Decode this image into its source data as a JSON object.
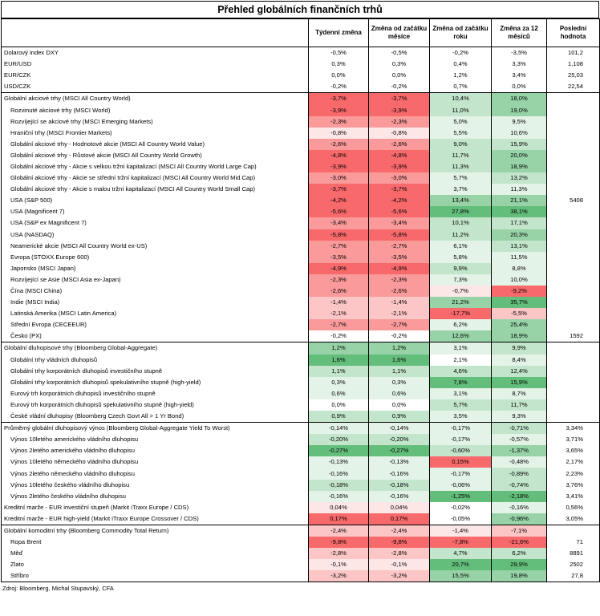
{
  "title": "Přehled globálních finančních trhů",
  "headers": [
    "",
    "Týdenní změna",
    "Změna od začátku měsíce",
    "Změna od začátku roku",
    "Změna za 12 měsíců",
    "Poslední hodnota"
  ],
  "colors": {
    "red_strong": "#f8696b",
    "red_mid": "#fa9a9b",
    "red_light": "#fcc5c6",
    "red_pale": "#fde6e6",
    "green_strong": "#63be7b",
    "green_mid": "#97d3a6",
    "green_light": "#c2e5cb",
    "green_pale": "#e4f3e8"
  },
  "groups": [
    {
      "rows": [
        {
          "label": "Dolarový index DXY",
          "sub": false,
          "w": "-0,5%",
          "m": "-0,5%",
          "y": "-0,2%",
          "t": "-3,5%",
          "last": "101,2"
        },
        {
          "label": "EUR/USD",
          "sub": false,
          "w": "0,3%",
          "m": "0,3%",
          "y": "0,4%",
          "t": "3,3%",
          "last": "1,108"
        },
        {
          "label": "EUR/CZK",
          "sub": false,
          "w": "0,0%",
          "m": "0,0%",
          "y": "1,2%",
          "t": "3,4%",
          "last": "25,03"
        },
        {
          "label": "USD/CZK",
          "sub": false,
          "w": "-0,2%",
          "m": "-0,2%",
          "y": "0,7%",
          "t": "0,0%",
          "last": "22,54"
        }
      ]
    },
    {
      "rows": [
        {
          "label": "Globální akciové trhy (MSCI All Country World)",
          "sub": false,
          "w": "-3,7%",
          "m": "-3,7%",
          "y": "10,4%",
          "t": "18,0%",
          "last": "",
          "cw": "red_strong",
          "cm": "red_strong",
          "cy": "green_light",
          "ct": "green_mid"
        },
        {
          "label": "Rozvinuté akciové trhy (MSCI World)",
          "sub": true,
          "w": "-3,9%",
          "m": "-3,9%",
          "y": "11,0%",
          "t": "19,0%",
          "last": "",
          "cw": "red_strong",
          "cm": "red_strong",
          "cy": "green_light",
          "ct": "green_mid"
        },
        {
          "label": "Rozvíjející se akciové trhy (MSCI Emerging Markets)",
          "sub": true,
          "w": "-2,3%",
          "m": "-2,3%",
          "y": "5,0%",
          "t": "9,5%",
          "last": "",
          "cw": "red_mid",
          "cm": "red_mid",
          "cy": "green_pale",
          "ct": "green_pale"
        },
        {
          "label": "Hraniční trhy (MSCI Frontier Markets)",
          "sub": true,
          "w": "-0,8%",
          "m": "-0,8%",
          "y": "5,5%",
          "t": "10,6%",
          "last": "",
          "cw": "red_pale",
          "cm": "red_pale",
          "cy": "green_pale",
          "ct": "green_pale"
        },
        {
          "label": "Globální akciové trhy - Hodnotové akcie (MSCI All Country World Value)",
          "sub": true,
          "w": "-2,6%",
          "m": "-2,6%",
          "y": "9,0%",
          "t": "15,9%",
          "last": "",
          "cw": "red_mid",
          "cm": "red_mid",
          "cy": "green_light",
          "ct": "green_light"
        },
        {
          "label": "Globální akciové trhy - Růstové akcie (MSCI All Country World Growth)",
          "sub": true,
          "w": "-4,8%",
          "m": "-4,8%",
          "y": "11,7%",
          "t": "20,0%",
          "last": "",
          "cw": "red_strong",
          "cm": "red_strong",
          "cy": "green_light",
          "ct": "green_mid"
        },
        {
          "label": "Globální akciové trhy - Akcie s velkou tržní kapitalizací (MSCI All Country World Large Cap)",
          "sub": true,
          "w": "-3,9%",
          "m": "-3,9%",
          "y": "11,3%",
          "t": "18,9%",
          "last": "",
          "cw": "red_strong",
          "cm": "red_strong",
          "cy": "green_light",
          "ct": "green_mid"
        },
        {
          "label": "Globální akciové trhy - Akcie se střední tržní kapitalizací (MSCI All Country World Mid Cap)",
          "sub": true,
          "w": "-3,0%",
          "m": "-3,0%",
          "y": "5,7%",
          "t": "13,2%",
          "last": "",
          "cw": "red_mid",
          "cm": "red_mid",
          "cy": "green_pale",
          "ct": "green_light"
        },
        {
          "label": "Globální akciové trhy - Akcie s malou tržní kapitalizací (MSCI All Country World Small Cap)",
          "sub": true,
          "w": "-3,7%",
          "m": "-3,7%",
          "y": "3,7%",
          "t": "11,3%",
          "last": "",
          "cw": "red_strong",
          "cm": "red_strong",
          "cy": "green_pale",
          "ct": "green_pale"
        },
        {
          "label": "USA (S&P 500)",
          "sub": true,
          "w": "-4,2%",
          "m": "-4,2%",
          "y": "13,4%",
          "t": "21,1%",
          "last": "5408",
          "cw": "red_strong",
          "cm": "red_strong",
          "cy": "green_mid",
          "ct": "green_mid"
        },
        {
          "label": "USA (Magnificent 7)",
          "sub": true,
          "w": "-5,6%",
          "m": "-5,6%",
          "y": "27,8%",
          "t": "38,1%",
          "last": "",
          "cw": "red_strong",
          "cm": "red_strong",
          "cy": "green_strong",
          "ct": "green_strong"
        },
        {
          "label": "USA (S&P ex Magnificent 7)",
          "sub": true,
          "w": "-3,4%",
          "m": "-3,4%",
          "y": "10,1%",
          "t": "17,1%",
          "last": "",
          "cw": "red_mid",
          "cm": "red_mid",
          "cy": "green_light",
          "ct": "green_light"
        },
        {
          "label": "USA (NASDAQ)",
          "sub": true,
          "w": "-5,8%",
          "m": "-5,8%",
          "y": "11,2%",
          "t": "20,3%",
          "last": "",
          "cw": "red_strong",
          "cm": "red_strong",
          "cy": "green_light",
          "ct": "green_mid"
        },
        {
          "label": "Neamerické akcie (MSCI All Country World ex-US)",
          "sub": true,
          "w": "-2,7%",
          "m": "-2,7%",
          "y": "6,1%",
          "t": "13,1%",
          "last": "",
          "cw": "red_mid",
          "cm": "red_mid",
          "cy": "green_pale",
          "ct": "green_light"
        },
        {
          "label": "Evropa (STOXX Europe 600)",
          "sub": true,
          "w": "-3,5%",
          "m": "-3,5%",
          "y": "5,8%",
          "t": "11,5%",
          "last": "",
          "cw": "red_mid",
          "cm": "red_mid",
          "cy": "green_pale",
          "ct": "green_pale"
        },
        {
          "label": "Japonsko (MSCI Japan)",
          "sub": true,
          "w": "-4,9%",
          "m": "-4,9%",
          "y": "9,9%",
          "t": "8,8%",
          "last": "",
          "cw": "red_strong",
          "cm": "red_strong",
          "cy": "green_light",
          "ct": "green_pale"
        },
        {
          "label": "Rozvíjející se Asie (MSCI Asia ex-Japan)",
          "sub": true,
          "w": "-2,3%",
          "m": "-2,3%",
          "y": "7,3%",
          "t": "10,0%",
          "last": "",
          "cw": "red_mid",
          "cm": "red_mid",
          "cy": "green_pale",
          "ct": "green_pale"
        },
        {
          "label": "Čína (MSCI China)",
          "sub": true,
          "w": "-2,6%",
          "m": "-2,6%",
          "y": "-0,7%",
          "t": "-9,2%",
          "last": "",
          "cw": "red_mid",
          "cm": "red_mid",
          "cy": "red_pale",
          "ct": "red_strong"
        },
        {
          "label": "Indie (MSCI India)",
          "sub": true,
          "w": "-1,4%",
          "m": "-1,4%",
          "y": "21,2%",
          "t": "35,7%",
          "last": "",
          "cw": "red_light",
          "cm": "red_light",
          "cy": "green_mid",
          "ct": "green_strong"
        },
        {
          "label": "Latinská Amerika (MSCI Latin America)",
          "sub": true,
          "w": "-2,1%",
          "m": "-2,1%",
          "y": "-17,7%",
          "t": "-5,5%",
          "last": "",
          "cw": "red_light",
          "cm": "red_light",
          "cy": "red_strong",
          "ct": "red_light"
        },
        {
          "label": "Střední Evropa (CECEEUR)",
          "sub": true,
          "w": "-2,7%",
          "m": "-2,7%",
          "y": "6,2%",
          "t": "25,4%",
          "last": "",
          "cw": "red_mid",
          "cm": "red_mid",
          "cy": "green_pale",
          "ct": "green_mid"
        },
        {
          "label": "Česko (PX)",
          "sub": true,
          "w": "-0,2%",
          "m": "-0,2%",
          "y": "12,6%",
          "t": "18,9%",
          "last": "1592",
          "cw": "",
          "cm": "",
          "cy": "green_mid",
          "ct": "green_mid"
        }
      ]
    },
    {
      "rows": [
        {
          "label": "Globální dluhopisové trhy (Bloomberg Global-Aggregate)",
          "sub": false,
          "w": "1,2%",
          "m": "1,2%",
          "y": "3,1%",
          "t": "9,9%",
          "last": "",
          "cw": "green_mid",
          "cm": "green_mid",
          "cy": "green_pale",
          "ct": "green_light"
        },
        {
          "label": "Globální trhy vládních dluhopisů",
          "sub": true,
          "w": "1,6%",
          "m": "1,6%",
          "y": "2,1%",
          "t": "8,4%",
          "last": "",
          "cw": "green_strong",
          "cm": "green_strong",
          "cy": "",
          "ct": "green_pale"
        },
        {
          "label": "Globální trhy korporátních dluhopisů investičního stupně",
          "sub": true,
          "w": "1,1%",
          "m": "1,1%",
          "y": "4,6%",
          "t": "12,4%",
          "last": "",
          "cw": "green_light",
          "cm": "green_light",
          "cy": "green_light",
          "ct": "green_light"
        },
        {
          "label": "Globální trhy korporátních dluhopisů spekulativního stupně (high-yield)",
          "sub": true,
          "w": "0,3%",
          "m": "0,3%",
          "y": "7,8%",
          "t": "15,9%",
          "last": "",
          "cw": "green_pale",
          "cm": "green_pale",
          "cy": "green_strong",
          "ct": "green_strong"
        },
        {
          "label": "Eurový trh korporátních dluhopisů investičního stupně",
          "sub": true,
          "w": "0,6%",
          "m": "0,6%",
          "y": "3,1%",
          "t": "8,7%",
          "last": "",
          "cw": "green_pale",
          "cm": "green_pale",
          "cy": "green_pale",
          "ct": "green_pale"
        },
        {
          "label": "Eurový trh korporátních dluhopisů spekulativního stupně (high-yield)",
          "sub": true,
          "w": "0,0%",
          "m": "0,0%",
          "y": "5,7%",
          "t": "11,7%",
          "last": "",
          "cw": "",
          "cm": "",
          "cy": "green_light",
          "ct": "green_light"
        },
        {
          "label": "České vládní dluhopisy (Bloomberg Czech Govt All > 1 Yr Bond)",
          "sub": true,
          "w": "0,9%",
          "m": "0,9%",
          "y": "3,5%",
          "t": "9,3%",
          "last": "",
          "cw": "green_light",
          "cm": "green_light",
          "cy": "green_pale",
          "ct": "green_pale"
        }
      ]
    },
    {
      "rows": [
        {
          "label": "Průměrný globální dluhopisový výnos (Bloomberg Global-Aggregate Yield To Worst)",
          "sub": false,
          "w": "-0,14%",
          "m": "-0,14%",
          "y": "-0,17%",
          "t": "-0,71%",
          "last": "3,34%",
          "cw": "green_pale",
          "cm": "green_pale",
          "cy": "green_pale",
          "ct": "green_light"
        },
        {
          "label": "Výnos 10letého amerického vládního dluhopisu",
          "sub": true,
          "w": "-0,20%",
          "m": "-0,20%",
          "y": "-0,17%",
          "t": "-0,57%",
          "last": "3,71%",
          "cw": "green_light",
          "cm": "green_light",
          "cy": "green_pale",
          "ct": "green_pale"
        },
        {
          "label": "Výnos 2letého amerického vládního dluhopisu",
          "sub": true,
          "w": "-0,27%",
          "m": "-0,27%",
          "y": "-0,60%",
          "t": "-1,37%",
          "last": "3,65%",
          "cw": "green_strong",
          "cm": "green_strong",
          "cy": "green_light",
          "ct": "green_mid"
        },
        {
          "label": "Výnos 10letého německého vládního dluhopisu",
          "sub": true,
          "w": "-0,13%",
          "m": "-0,13%",
          "y": "0,15%",
          "t": "-0,48%",
          "last": "2,17%",
          "cw": "green_pale",
          "cm": "green_pale",
          "cy": "red_strong",
          "ct": "green_pale"
        },
        {
          "label": "Výnos 2letého německého vládního dluhopisu",
          "sub": true,
          "w": "-0,16%",
          "m": "-0,16%",
          "y": "-0,17%",
          "t": "-0,89%",
          "last": "2,23%",
          "cw": "green_pale",
          "cm": "green_pale",
          "cy": "green_pale",
          "ct": "green_light"
        },
        {
          "label": "Výnos 10letého českého vládního dluhopisu",
          "sub": true,
          "w": "-0,18%",
          "m": "-0,18%",
          "y": "-0,06%",
          "t": "-0,74%",
          "last": "3,76%",
          "cw": "green_light",
          "cm": "green_light",
          "cy": "green_pale",
          "ct": "green_light"
        },
        {
          "label": "Výnos 2letého českého vládního dluhopisu",
          "sub": true,
          "w": "-0,16%",
          "m": "-0,16%",
          "y": "-1,25%",
          "t": "-2,18%",
          "last": "3,41%",
          "cw": "green_pale",
          "cm": "green_pale",
          "cy": "green_strong",
          "ct": "green_strong"
        },
        {
          "label": "Kreditní marže - EUR investiční stupeň (Markit iTraxx Europe / CDS)",
          "sub": false,
          "w": "0,04%",
          "m": "0,04%",
          "y": "-0,02%",
          "t": "-0,16%",
          "last": "0,56%",
          "cw": "red_pale",
          "cm": "red_pale",
          "cy": "",
          "ct": "green_pale"
        },
        {
          "label": "Kreditní marže - EUR high-yield (Markit iTraxx Europe Crossover / CDS)",
          "sub": false,
          "w": "0,17%",
          "m": "0,17%",
          "y": "-0,05%",
          "t": "-0,96%",
          "last": "3,05%",
          "cw": "red_strong",
          "cm": "red_strong",
          "cy": "",
          "ct": "green_mid"
        }
      ]
    },
    {
      "rows": [
        {
          "label": "Globální komoditní trhy (Bloomberg Commodity Total Return)",
          "sub": false,
          "w": "-2,4%",
          "m": "-2,4%",
          "y": "-1,4%",
          "t": "-7,1%",
          "last": "",
          "cw": "red_light",
          "cm": "red_light",
          "cy": "red_pale",
          "ct": "red_light"
        },
        {
          "label": "Ropa Brent",
          "sub": true,
          "w": "-9,8%",
          "m": "-9,8%",
          "y": "-7,8%",
          "t": "-21,6%",
          "last": "71",
          "cw": "red_strong",
          "cm": "red_strong",
          "cy": "red_strong",
          "ct": "red_strong"
        },
        {
          "label": "Měď",
          "sub": true,
          "w": "-2,8%",
          "m": "-2,8%",
          "y": "4,7%",
          "t": "6,2%",
          "last": "8891",
          "cw": "red_light",
          "cm": "red_light",
          "cy": "green_light",
          "ct": "green_light"
        },
        {
          "label": "Zlato",
          "sub": true,
          "w": "-0,1%",
          "m": "-0,1%",
          "y": "20,7%",
          "t": "29,9%",
          "last": "2502",
          "cw": "red_pale",
          "cm": "red_pale",
          "cy": "green_strong",
          "ct": "green_strong"
        },
        {
          "label": "Stříbro",
          "sub": true,
          "w": "-3,2%",
          "m": "-3,2%",
          "y": "15,5%",
          "t": "19,8%",
          "last": "27,8",
          "cw": "red_light",
          "cm": "red_light",
          "cy": "green_mid",
          "ct": "green_mid"
        }
      ]
    }
  ],
  "source": "Zdroj: Bloomberg, Michal Stupavský, CFA"
}
